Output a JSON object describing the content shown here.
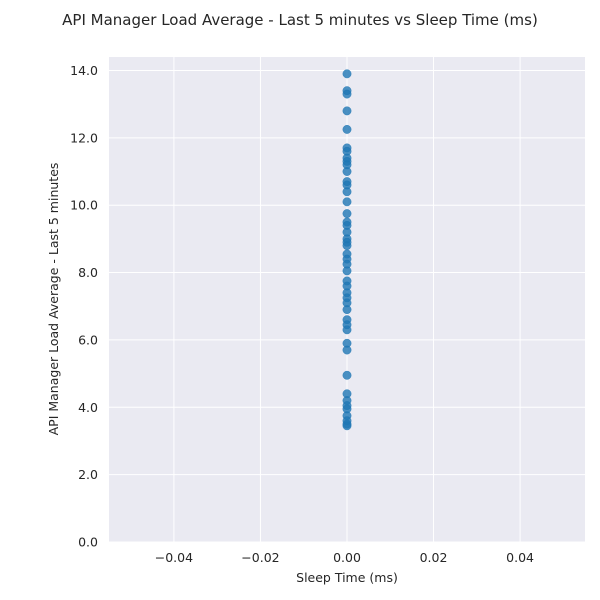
{
  "chart_data": {
    "type": "scatter",
    "title": "API Manager Load Average - Last 5 minutes vs Sleep Time (ms)",
    "xlabel": "Sleep Time (ms)",
    "ylabel": "API Manager Load Average - Last 5 minutes",
    "xlim": [
      -0.055,
      0.055
    ],
    "ylim": [
      0,
      14.4
    ],
    "x_ticks": [
      -0.04,
      -0.02,
      0.0,
      0.02,
      0.04
    ],
    "x_tick_labels": [
      "−0.04",
      "−0.02",
      "0.00",
      "0.02",
      "0.04"
    ],
    "y_ticks": [
      0,
      2,
      4,
      6,
      8,
      10,
      12,
      14
    ],
    "y_tick_labels": [
      "0.0",
      "2.0",
      "4.0",
      "6.0",
      "8.0",
      "10.0",
      "12.0",
      "14.0"
    ],
    "grid": true,
    "background": "#eaeaf2",
    "point_color": "#1f77b4",
    "points": [
      {
        "x": 0,
        "y": 13.9
      },
      {
        "x": 0,
        "y": 13.4
      },
      {
        "x": 0,
        "y": 13.3
      },
      {
        "x": 0,
        "y": 12.8
      },
      {
        "x": 0,
        "y": 12.25
      },
      {
        "x": 0,
        "y": 11.7
      },
      {
        "x": 0,
        "y": 11.6
      },
      {
        "x": 0,
        "y": 11.4
      },
      {
        "x": 0,
        "y": 11.3
      },
      {
        "x": 0,
        "y": 11.2
      },
      {
        "x": 0,
        "y": 11.0
      },
      {
        "x": 0,
        "y": 10.7
      },
      {
        "x": 0,
        "y": 10.6
      },
      {
        "x": 0,
        "y": 10.4
      },
      {
        "x": 0,
        "y": 10.1
      },
      {
        "x": 0,
        "y": 9.75
      },
      {
        "x": 0,
        "y": 9.5
      },
      {
        "x": 0,
        "y": 9.4
      },
      {
        "x": 0,
        "y": 9.2
      },
      {
        "x": 0,
        "y": 9.0
      },
      {
        "x": 0,
        "y": 8.9
      },
      {
        "x": 0,
        "y": 8.8
      },
      {
        "x": 0,
        "y": 8.55
      },
      {
        "x": 0,
        "y": 8.4
      },
      {
        "x": 0,
        "y": 8.25
      },
      {
        "x": 0,
        "y": 8.05
      },
      {
        "x": 0,
        "y": 7.75
      },
      {
        "x": 0,
        "y": 7.6
      },
      {
        "x": 0,
        "y": 7.4
      },
      {
        "x": 0,
        "y": 7.25
      },
      {
        "x": 0,
        "y": 7.1
      },
      {
        "x": 0,
        "y": 6.9
      },
      {
        "x": 0,
        "y": 6.6
      },
      {
        "x": 0,
        "y": 6.45
      },
      {
        "x": 0,
        "y": 6.3
      },
      {
        "x": 0,
        "y": 5.9
      },
      {
        "x": 0,
        "y": 5.7
      },
      {
        "x": 0,
        "y": 4.95
      },
      {
        "x": 0,
        "y": 4.4
      },
      {
        "x": 0,
        "y": 4.2
      },
      {
        "x": 0,
        "y": 4.05
      },
      {
        "x": 0,
        "y": 3.95
      },
      {
        "x": 0,
        "y": 3.75
      },
      {
        "x": 0,
        "y": 3.6
      },
      {
        "x": 0,
        "y": 3.5
      },
      {
        "x": 0,
        "y": 3.45
      }
    ]
  }
}
